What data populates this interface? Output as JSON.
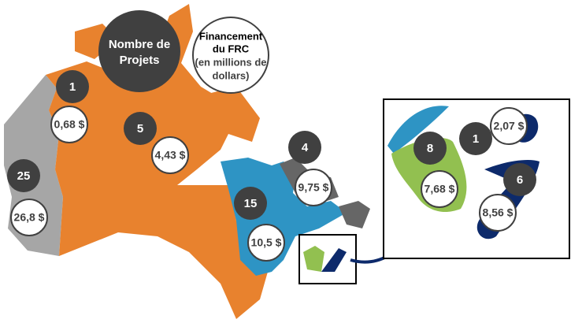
{
  "legend": {
    "projects_lines": [
      "Nombre de",
      "Projets"
    ],
    "funding_lines": [
      "Financement",
      "du FRC"
    ],
    "funding_note_lines": [
      "(en millions de",
      "dollars)"
    ]
  },
  "regions": [
    {
      "projects": 1,
      "funding": "0,68 $"
    },
    {
      "projects": 5,
      "funding": "4,43 $"
    },
    {
      "projects": 25,
      "funding": "26,8 $"
    },
    {
      "projects": 4,
      "funding": "9,75 $"
    },
    {
      "projects": 15,
      "funding": "10,5 $"
    },
    {
      "projects": 8,
      "funding": "7,68 $"
    },
    {
      "projects": 1,
      "funding": "2,07 $"
    },
    {
      "projects": 6,
      "funding": "8,56 $"
    }
  ]
}
